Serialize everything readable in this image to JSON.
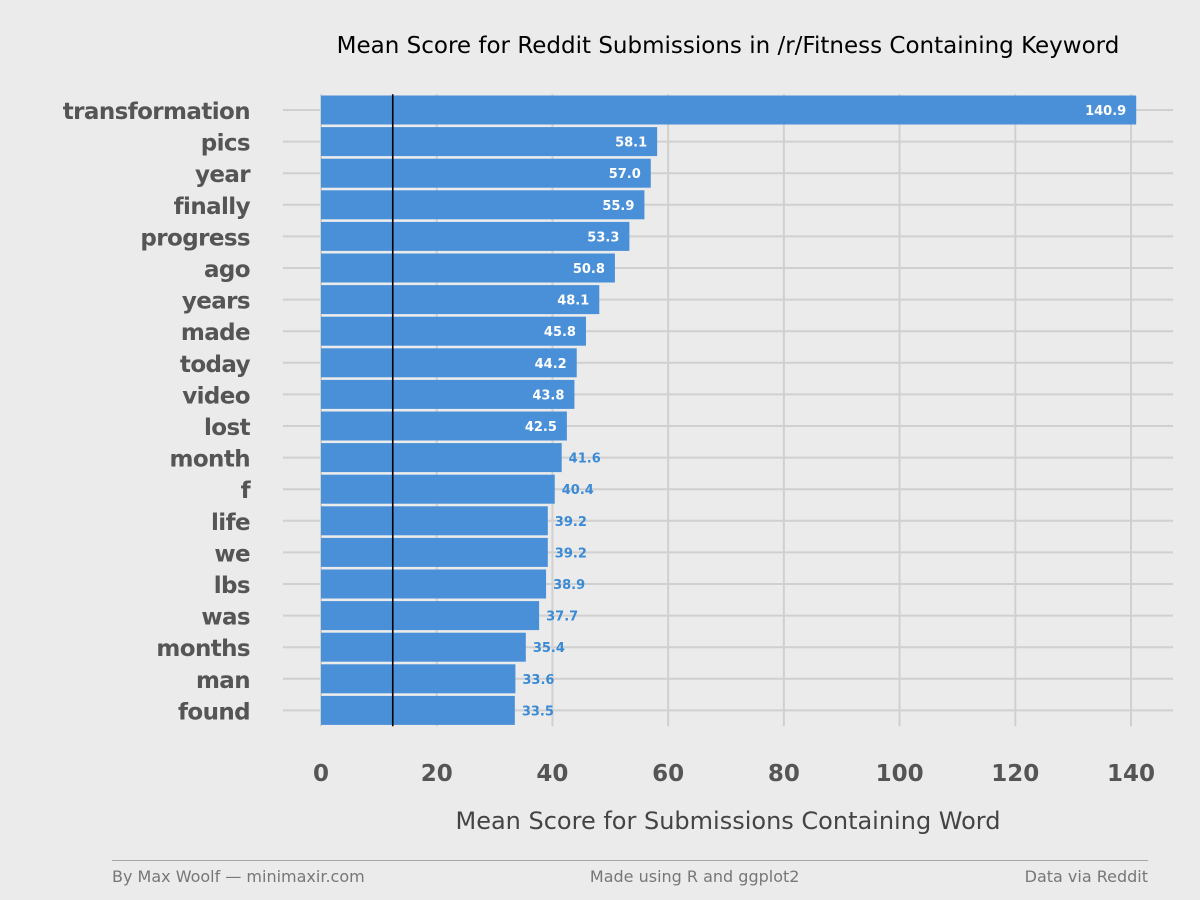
{
  "chart_data": {
    "type": "bar",
    "orientation": "horizontal",
    "title": "Mean Score for Reddit Submissions in /r/Fitness Containing Keyword",
    "xlabel": "Mean Score for Submissions Containing Word",
    "ylabel": "",
    "categories": [
      "transformation",
      "pics",
      "year",
      "finally",
      "progress",
      "ago",
      "years",
      "made",
      "today",
      "video",
      "lost",
      "month",
      "f",
      "life",
      "we",
      "lbs",
      "was",
      "months",
      "man",
      "found"
    ],
    "values": [
      140.9,
      58.1,
      57.0,
      55.9,
      53.3,
      50.8,
      48.1,
      45.8,
      44.2,
      43.8,
      42.5,
      41.6,
      40.4,
      39.2,
      39.2,
      38.9,
      37.7,
      35.4,
      33.6,
      33.5
    ],
    "value_labels": [
      "140.9",
      "58.1",
      "57.0",
      "55.9",
      "53.3",
      "50.8",
      "48.1",
      "45.8",
      "44.2",
      "43.8",
      "42.5",
      "41.6",
      "40.4",
      "39.2",
      "39.2",
      "38.9",
      "37.7",
      "35.4",
      "33.6",
      "33.5"
    ],
    "xlim": [
      0,
      140.9
    ],
    "x_ticks": [
      0,
      20,
      40,
      60,
      80,
      100,
      120,
      140
    ],
    "x_tick_labels": [
      "0",
      "20",
      "40",
      "60",
      "80",
      "100",
      "120",
      "140"
    ],
    "reference_line": 12.4,
    "grid": true,
    "bar_color": "#4a90d9",
    "inside_label_color": "#ffffff",
    "outside_label_color": "#3a8ad6",
    "grid_color": "#d0d0d0",
    "background_color": "#ebebeb"
  },
  "footer": {
    "left": "By Max Woolf — minimaxir.com",
    "center": "Made using R and ggplot2",
    "right": "Data via Reddit"
  }
}
